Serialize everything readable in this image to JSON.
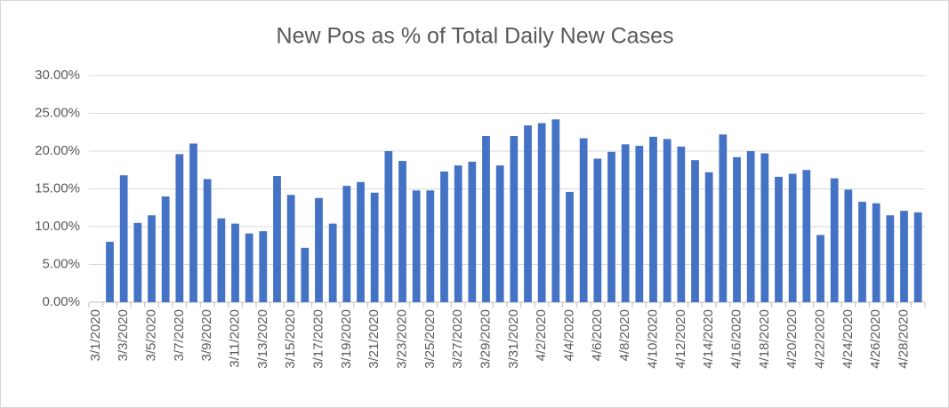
{
  "chart_data": {
    "type": "bar",
    "title": "New Pos as % of Total Daily New Cases",
    "categories": [
      "3/1/2020",
      null,
      "3/3/2020",
      null,
      "3/5/2020",
      null,
      "3/7/2020",
      null,
      "3/9/2020",
      null,
      "3/11/2020",
      null,
      "3/13/2020",
      null,
      "3/15/2020",
      null,
      "3/17/2020",
      null,
      "3/19/2020",
      null,
      "3/21/2020",
      null,
      "3/23/2020",
      null,
      "3/25/2020",
      null,
      "3/27/2020",
      null,
      "3/29/2020",
      null,
      "3/31/2020",
      null,
      "4/2/2020",
      null,
      "4/4/2020",
      null,
      "4/6/2020",
      null,
      "4/8/2020",
      null,
      "4/10/2020",
      null,
      "4/12/2020",
      null,
      "4/14/2020",
      null,
      "4/16/2020",
      null,
      "4/18/2020",
      null,
      "4/20/2020",
      null,
      "4/22/2020",
      null,
      "4/24/2020",
      null,
      "4/26/2020",
      null,
      "4/28/2020",
      null
    ],
    "values": [
      null,
      8.0,
      16.8,
      10.5,
      11.5,
      14.0,
      19.6,
      21.0,
      16.3,
      11.1,
      10.4,
      9.1,
      9.4,
      16.7,
      14.2,
      7.2,
      13.8,
      10.4,
      15.4,
      15.9,
      14.5,
      20.0,
      18.7,
      14.8,
      14.8,
      17.3,
      18.1,
      18.6,
      22.0,
      18.1,
      22.0,
      23.4,
      23.7,
      24.2,
      14.6,
      21.7,
      19.0,
      19.9,
      20.9,
      20.7,
      21.9,
      21.6,
      20.6,
      18.8,
      17.2,
      22.2,
      19.2,
      20.0,
      19.7,
      16.6,
      17.0,
      17.5,
      8.9,
      16.4,
      14.9,
      13.3,
      13.1,
      11.5,
      12.1,
      11.9
    ],
    "color": "#4472c4",
    "ylim": [
      0,
      30
    ],
    "yticks": [
      {
        "value": 0,
        "label": "0.00%"
      },
      {
        "value": 5,
        "label": "5.00%"
      },
      {
        "value": 10,
        "label": "10.00%"
      },
      {
        "value": 15,
        "label": "15.00%"
      },
      {
        "value": 20,
        "label": "20.00%"
      },
      {
        "value": 25,
        "label": "25.00%"
      },
      {
        "value": 30,
        "label": "30.00%"
      }
    ],
    "grid": true
  }
}
